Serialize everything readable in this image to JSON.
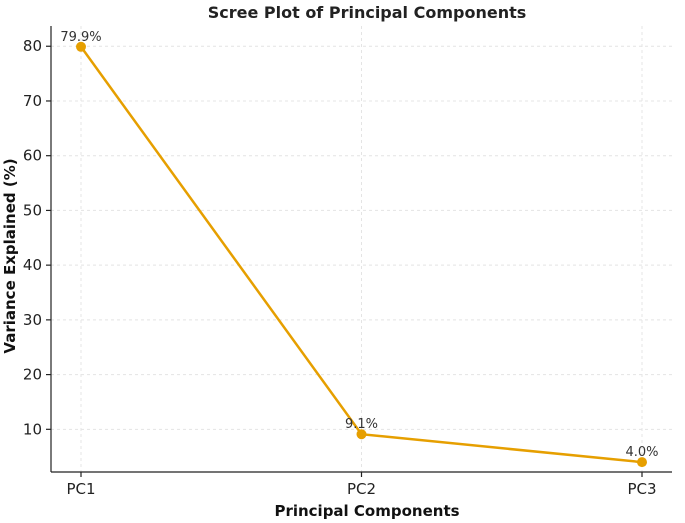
{
  "chart_data": {
    "type": "line",
    "title": "Scree Plot of Principal Components",
    "xlabel": "Principal Components",
    "ylabel": "Variance Explained (%)",
    "categories": [
      "PC1",
      "PC2",
      "PC3"
    ],
    "series": [
      {
        "values": [
          79.9,
          9.1,
          4.0
        ],
        "labels": [
          "79.9%",
          "9.1%",
          "4.0%"
        ],
        "color": "#E69F00"
      }
    ],
    "ylim": [
      2.2,
      83.7
    ],
    "yticks": [
      10,
      20,
      30,
      40,
      50,
      60,
      70,
      80
    ],
    "grid": true,
    "legend": "none"
  }
}
